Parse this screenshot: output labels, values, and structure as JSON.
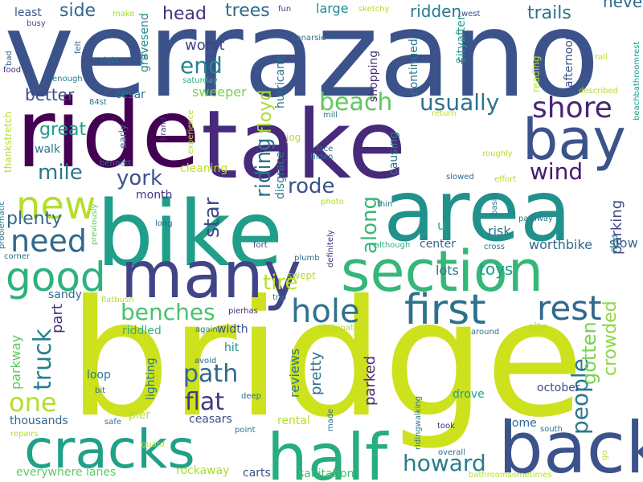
{
  "words": [
    {
      "text": "verrazano",
      "color": "#3b528b"
    },
    {
      "text": "bridge",
      "color": "#cde11d"
    },
    {
      "text": "ride",
      "color": "#440154"
    },
    {
      "text": "take",
      "color": "#472a7a"
    },
    {
      "text": "bike",
      "color": "#1f9e89"
    },
    {
      "text": "area",
      "color": "#21918c"
    },
    {
      "text": "section",
      "color": "#35b779"
    },
    {
      "text": "many",
      "color": "#414487"
    },
    {
      "text": "bay",
      "color": "#3b528b"
    },
    {
      "text": "back",
      "color": "#3b528b"
    },
    {
      "text": "half",
      "color": "#26ad81"
    },
    {
      "text": "cracks",
      "color": "#1fa187"
    },
    {
      "text": "first",
      "color": "#2c728e"
    },
    {
      "text": "new",
      "color": "#b5de2b"
    },
    {
      "text": "good",
      "color": "#2db27d"
    },
    {
      "text": "shore",
      "color": "#482475"
    },
    {
      "text": "need",
      "color": "#31688e"
    },
    {
      "text": "rest",
      "color": "#31688e"
    },
    {
      "text": "hole",
      "color": "#2c728e"
    },
    {
      "text": "beach",
      "color": "#5ec962"
    },
    {
      "text": "usually",
      "color": "#2c728e"
    },
    {
      "text": "wind",
      "color": "#481a6c"
    },
    {
      "text": "path",
      "color": "#31688e"
    },
    {
      "text": "flat",
      "color": "#443983"
    },
    {
      "text": "one",
      "color": "#b5de2b"
    },
    {
      "text": "benches",
      "color": "#4ac16d"
    },
    {
      "text": "truck",
      "color": "#26828e"
    },
    {
      "text": "people",
      "color": "#2a788e"
    },
    {
      "text": "howard",
      "color": "#287d8e"
    },
    {
      "text": "end",
      "color": "#25858e"
    },
    {
      "text": "york",
      "color": "#3b528b"
    },
    {
      "text": "mile",
      "color": "#2a788e"
    },
    {
      "text": "great",
      "color": "#1f9e89"
    },
    {
      "text": "plenty",
      "color": "#31688e"
    },
    {
      "text": "rode",
      "color": "#3b528b"
    },
    {
      "text": "tire",
      "color": "#bddf26"
    },
    {
      "text": "riding",
      "color": "#2c728e"
    },
    {
      "text": "floyd",
      "color": "#a8db34"
    },
    {
      "text": "along",
      "color": "#38b977"
    },
    {
      "text": "star",
      "color": "#3e4a89"
    },
    {
      "text": "head",
      "color": "#46327e"
    },
    {
      "text": "trees",
      "color": "#31688e"
    },
    {
      "text": "side",
      "color": "#31688e"
    },
    {
      "text": "ridden",
      "color": "#2a788e"
    },
    {
      "text": "trails",
      "color": "#2c728e"
    },
    {
      "text": "never",
      "color": "#31688e"
    },
    {
      "text": "better",
      "color": "#3e4a89"
    },
    {
      "text": "worst",
      "color": "#424086"
    },
    {
      "text": "large",
      "color": "#23898e"
    },
    {
      "text": "gotten",
      "color": "#7ad151"
    },
    {
      "text": "crowded",
      "color": "#90d743"
    },
    {
      "text": "parking",
      "color": "#3e4a89"
    },
    {
      "text": "pretty",
      "color": "#2c728e"
    },
    {
      "text": "reviews",
      "color": "#2a788e"
    },
    {
      "text": "parked",
      "color": "#482878"
    },
    {
      "text": "parkway",
      "color": "#5ec962"
    },
    {
      "text": "part",
      "color": "#46327e"
    },
    {
      "text": "lots",
      "color": "#2c728e"
    },
    {
      "text": "toys",
      "color": "#1f9e89"
    },
    {
      "text": "center",
      "color": "#31688e"
    },
    {
      "text": "risk",
      "color": "#2c728e"
    },
    {
      "text": "worthbike",
      "color": "#31688e"
    },
    {
      "text": "slow",
      "color": "#31688e"
    },
    {
      "text": "month",
      "color": "#46327e"
    },
    {
      "text": "sweeper",
      "color": "#7ad151"
    },
    {
      "text": "cleaning",
      "color": "#c2df23"
    },
    {
      "text": "cesar",
      "color": "#2c728e"
    },
    {
      "text": "walk",
      "color": "#2a788e"
    },
    {
      "text": "thousands",
      "color": "#31688e"
    },
    {
      "text": "everywhere lanes",
      "color": "#5ec962"
    },
    {
      "text": "rockaway",
      "color": "#a8db34"
    },
    {
      "text": "carts",
      "color": "#3b528b"
    },
    {
      "text": "sanitation",
      "color": "#4ac16d"
    },
    {
      "text": "rental",
      "color": "#b5de2b"
    },
    {
      "text": "drove",
      "color": "#1f9e89"
    },
    {
      "text": "october",
      "color": "#3e4a89"
    },
    {
      "text": "home",
      "color": "#31688e"
    },
    {
      "text": "site",
      "color": "#b5de2b"
    },
    {
      "text": "loop",
      "color": "#2a788e"
    },
    {
      "text": "hit",
      "color": "#23898e"
    },
    {
      "text": "width",
      "color": "#3b528b"
    },
    {
      "text": "riddled",
      "color": "#2db27d"
    },
    {
      "text": "pier",
      "color": "#b5de2b"
    },
    {
      "text": "ceasars",
      "color": "#3e4a89"
    },
    {
      "text": "sandy",
      "color": "#31688e"
    },
    {
      "text": "lighting",
      "color": "#2a788e"
    },
    {
      "text": "swept",
      "color": "#b5de2b"
    },
    {
      "text": "disgrace",
      "color": "#2a788e"
    },
    {
      "text": "hurricane",
      "color": "#2c728e"
    },
    {
      "text": "shopping",
      "color": "#472c7a"
    },
    {
      "text": "continued",
      "color": "#2a788e"
    },
    {
      "text": "causing",
      "color": "#2a788e"
    },
    {
      "text": "jog",
      "color": "#b5de2b"
    },
    {
      "text": "cityafter",
      "color": "#1f9e89"
    },
    {
      "text": "afternoon",
      "color": "#3b528b"
    },
    {
      "text": "reading",
      "color": "#b5de2b"
    },
    {
      "text": "gravesend",
      "color": "#23898e"
    },
    {
      "text": "early",
      "color": "#2c728e"
    },
    {
      "text": "least",
      "color": "#3b528b"
    },
    {
      "text": "u",
      "color": "#2db27d"
    },
    {
      "text": "thankstretch",
      "color": "#b5de2b"
    },
    {
      "text": "previously",
      "color": "#5ec962"
    },
    {
      "text": "ridingwalking",
      "color": "#2a788e"
    },
    {
      "text": "busy",
      "color": "#3e4a89"
    },
    {
      "text": "felt",
      "color": "#31688e"
    },
    {
      "text": "right",
      "color": "#2c728e"
    },
    {
      "text": "fun",
      "color": "#3e4a89"
    },
    {
      "text": "canarsie",
      "color": "#2c728e"
    },
    {
      "text": "make",
      "color": "#a8db34"
    },
    {
      "text": "sketchy",
      "color": "#b5de2b"
    },
    {
      "text": "west",
      "color": "#3e4a89"
    },
    {
      "text": "rail",
      "color": "#b5de2b"
    },
    {
      "text": "op",
      "color": "#2a788e"
    },
    {
      "text": "bad",
      "color": "#31688e"
    },
    {
      "text": "food",
      "color": "#46327e"
    },
    {
      "text": "enough",
      "color": "#2a788e"
    },
    {
      "text": "84st",
      "color": "#2c728e"
    },
    {
      "text": "st",
      "color": "#2c728e"
    },
    {
      "text": "saturday",
      "color": "#2db27d"
    },
    {
      "text": "described",
      "color": "#b5de2b"
    },
    {
      "text": "beachbathroomrest",
      "color": "#1f9e89"
    },
    {
      "text": "problematic",
      "color": "#2a788e"
    },
    {
      "text": "brand",
      "color": "#46327e"
    },
    {
      "text": "experience",
      "color": "#b5de2b"
    },
    {
      "text": "mill",
      "color": "#2c728e"
    },
    {
      "text": "return",
      "color": "#b5de2b"
    },
    {
      "text": "face",
      "color": "#31688e"
    },
    {
      "text": "tilden",
      "color": "#2c728e"
    },
    {
      "text": "roughly",
      "color": "#b5de2b"
    },
    {
      "text": "bennett",
      "color": "#2c728e"
    },
    {
      "text": "slowed",
      "color": "#31688e"
    },
    {
      "text": "effort",
      "color": "#b5de2b"
    },
    {
      "text": "photo",
      "color": "#b5de2b"
    },
    {
      "text": "basin",
      "color": "#2a788e"
    },
    {
      "text": "thin",
      "color": "#2c728e"
    },
    {
      "text": "pathway",
      "color": "#2a788e"
    },
    {
      "text": "long",
      "color": "#31688e"
    },
    {
      "text": "fort",
      "color": "#3e4a89"
    },
    {
      "text": "plumb",
      "color": "#31688e"
    },
    {
      "text": "definitely",
      "color": "#46327e"
    },
    {
      "text": "although",
      "color": "#2db27d"
    },
    {
      "text": "cross",
      "color": "#2c728e"
    },
    {
      "text": "field",
      "color": "#2a788e"
    },
    {
      "text": "corner",
      "color": "#2c728e"
    },
    {
      "text": "flatbush",
      "color": "#b5de2b"
    },
    {
      "text": "trip",
      "color": "#2c728e"
    },
    {
      "text": "pierhas",
      "color": "#472c7a"
    },
    {
      "text": "againi",
      "color": "#2a788e"
    },
    {
      "text": "anticipated",
      "color": "#b5de2b"
    },
    {
      "text": "around",
      "color": "#2c728e"
    },
    {
      "text": "avoid",
      "color": "#31688e"
    },
    {
      "text": "deep",
      "color": "#31688e"
    },
    {
      "text": "repairs",
      "color": "#b5de2b"
    },
    {
      "text": "bit",
      "color": "#31688e"
    },
    {
      "text": "safe",
      "color": "#2c728e"
    },
    {
      "text": "point",
      "color": "#2c728e"
    },
    {
      "text": "made",
      "color": "#2c728e"
    },
    {
      "text": "took",
      "color": "#46327e"
    },
    {
      "text": "south",
      "color": "#2c728e"
    },
    {
      "text": "guard",
      "color": "#b5de2b"
    },
    {
      "text": "overall",
      "color": "#31688e"
    },
    {
      "text": "go",
      "color": "#b5de2b"
    },
    {
      "text": "bathroomsometimes",
      "color": "#b5de2b"
    }
  ]
}
